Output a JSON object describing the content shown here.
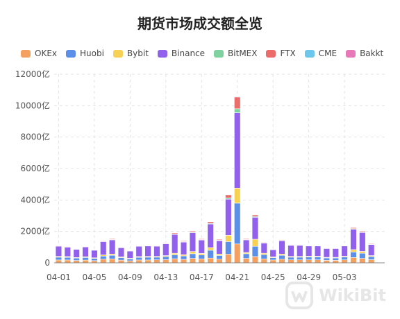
{
  "chart_data": {
    "type": "bar",
    "stacked": true,
    "title": "期货市场成交额全览",
    "y_unit": "亿",
    "ylim": [
      0,
      12000
    ],
    "yticks": [
      "0",
      "2000亿",
      "4000亿",
      "6000亿",
      "8000亿",
      "10000亿",
      "12000亿"
    ],
    "x_tick_labels": [
      "04-01",
      "04-05",
      "04-09",
      "04-13",
      "04-17",
      "04-21",
      "04-25",
      "04-29",
      "05-03"
    ],
    "categories": [
      "04-01",
      "04-02",
      "04-03",
      "04-04",
      "04-05",
      "04-06",
      "04-07",
      "04-08",
      "04-09",
      "04-10",
      "04-11",
      "04-12",
      "04-13",
      "04-14",
      "04-15",
      "04-16",
      "04-17",
      "04-18",
      "04-19",
      "04-20",
      "04-21",
      "04-22",
      "04-23",
      "04-24",
      "04-25",
      "04-26",
      "04-27",
      "04-28",
      "04-29",
      "04-30",
      "05-01",
      "05-02",
      "05-03",
      "05-04",
      "05-05",
      "05-06",
      "05-07"
    ],
    "series": [
      {
        "name": "OKEx",
        "color": "#F4A060",
        "values": [
          180,
          180,
          150,
          170,
          140,
          230,
          250,
          170,
          130,
          180,
          180,
          190,
          200,
          260,
          220,
          280,
          250,
          300,
          230,
          550,
          1200,
          280,
          400,
          250,
          180,
          230,
          190,
          190,
          190,
          190,
          160,
          160,
          190,
          340,
          280,
          200,
          0
        ]
      },
      {
        "name": "Huobi",
        "color": "#5B8FE8",
        "values": [
          180,
          170,
          150,
          170,
          140,
          200,
          230,
          160,
          120,
          170,
          180,
          170,
          200,
          250,
          220,
          300,
          250,
          500,
          240,
          800,
          2600,
          300,
          650,
          270,
          150,
          250,
          170,
          170,
          180,
          180,
          150,
          150,
          180,
          350,
          330,
          200,
          0
        ]
      },
      {
        "name": "Bybit",
        "color": "#F7D154",
        "values": [
          50,
          50,
          40,
          50,
          40,
          70,
          80,
          50,
          40,
          50,
          50,
          50,
          60,
          100,
          80,
          140,
          100,
          170,
          90,
          400,
          950,
          80,
          450,
          90,
          50,
          80,
          50,
          50,
          50,
          50,
          40,
          40,
          50,
          150,
          120,
          60,
          0
        ]
      },
      {
        "name": "Binance",
        "color": "#9160EC",
        "values": [
          650,
          600,
          520,
          620,
          480,
          850,
          900,
          580,
          460,
          650,
          660,
          650,
          750,
          1200,
          800,
          1200,
          850,
          1500,
          850,
          2300,
          4800,
          800,
          1400,
          650,
          450,
          850,
          700,
          700,
          650,
          650,
          560,
          560,
          650,
          1300,
          1200,
          700,
          0
        ]
      },
      {
        "name": "BitMEX",
        "color": "#7FD1A0",
        "values": [
          20,
          20,
          15,
          20,
          15,
          25,
          30,
          20,
          15,
          20,
          20,
          20,
          25,
          40,
          30,
          40,
          30,
          50,
          30,
          80,
          250,
          30,
          50,
          25,
          15,
          25,
          20,
          20,
          20,
          20,
          15,
          15,
          20,
          40,
          35,
          25,
          0
        ]
      },
      {
        "name": "FTX",
        "color": "#EC6C6C",
        "values": [
          30,
          30,
          25,
          30,
          25,
          40,
          50,
          30,
          25,
          30,
          30,
          30,
          40,
          60,
          50,
          70,
          50,
          100,
          50,
          200,
          750,
          50,
          100,
          40,
          25,
          40,
          30,
          30,
          30,
          30,
          25,
          25,
          30,
          60,
          55,
          40,
          0
        ]
      },
      {
        "name": "CME",
        "color": "#6DC7EC",
        "values": [
          10,
          10,
          10,
          10,
          10,
          10,
          10,
          10,
          10,
          10,
          10,
          10,
          10,
          10,
          10,
          10,
          10,
          10,
          10,
          20,
          40,
          10,
          20,
          10,
          10,
          10,
          10,
          10,
          10,
          10,
          10,
          10,
          10,
          10,
          10,
          10,
          0
        ]
      },
      {
        "name": "Bakkt",
        "color": "#E879B8",
        "values": [
          5,
          5,
          5,
          5,
          5,
          5,
          5,
          5,
          5,
          5,
          5,
          5,
          5,
          5,
          5,
          5,
          5,
          5,
          5,
          10,
          10,
          5,
          5,
          5,
          5,
          5,
          5,
          5,
          5,
          5,
          5,
          5,
          5,
          5,
          5,
          5,
          0
        ]
      }
    ],
    "grid": true,
    "legend_position": "top-left"
  },
  "watermark": {
    "text": "WikiBit"
  }
}
